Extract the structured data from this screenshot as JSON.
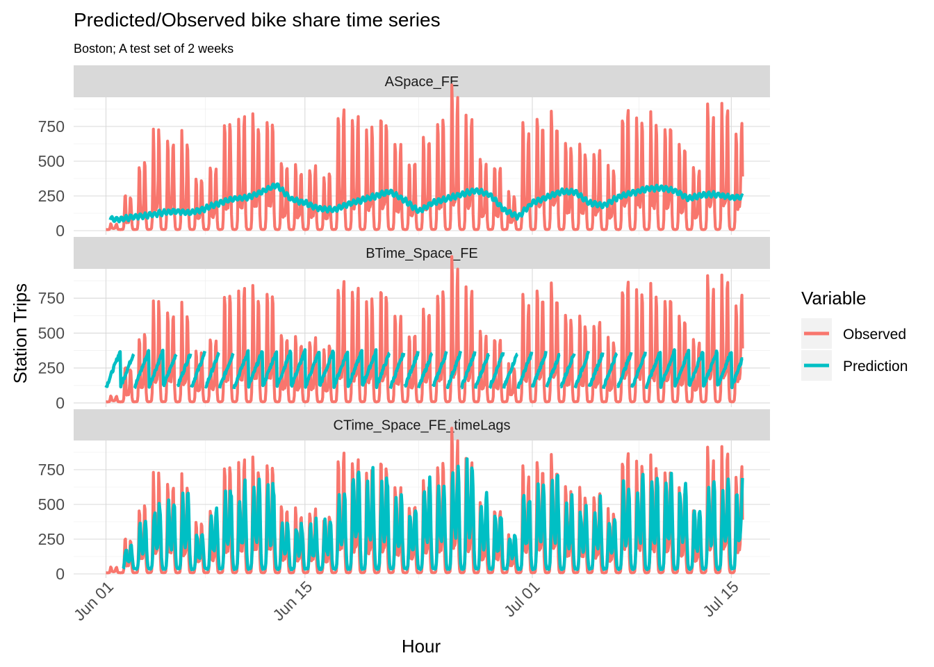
{
  "chart_data": {
    "type": "line",
    "title": "Predicted/Observed bike share time series",
    "subtitle": "Boston; A test set of 2 weeks",
    "xlabel": "Hour",
    "ylabel": "Station Trips",
    "x_ticks": [
      "Jun 01",
      "Jun 15",
      "Jul 01",
      "Jul 15"
    ],
    "x_tick_days": [
      0,
      14,
      30,
      44
    ],
    "x_range_days": [
      0,
      44.8
    ],
    "y_ticks": [
      0,
      250,
      500,
      750
    ],
    "ylim": [
      -30,
      960
    ],
    "grid": true,
    "legend": {
      "title": "Variable",
      "position": "right",
      "entries": [
        {
          "label": "Observed",
          "color": "#F8766D"
        },
        {
          "label": "Prediction",
          "color": "#00BFC4"
        }
      ]
    },
    "observed_daily_peaks": [
      40,
      250,
      480,
      700,
      690,
      660,
      380,
      430,
      780,
      780,
      780,
      790,
      470,
      450,
      460,
      400,
      850,
      780,
      720,
      800,
      600,
      470,
      700,
      780,
      930,
      780,
      480,
      450,
      250,
      720,
      820,
      800,
      610,
      560,
      560,
      420,
      820,
      800,
      760,
      760,
      630,
      420,
      840,
      840,
      730
    ],
    "panels": [
      {
        "strip": "ASpace_FE",
        "prediction_model": "smooth",
        "prediction_daily": [
          90,
          80,
          100,
          110,
          130,
          140,
          130,
          160,
          200,
          230,
          240,
          280,
          330,
          230,
          200,
          160,
          150,
          190,
          220,
          250,
          280,
          220,
          140,
          200,
          230,
          260,
          290,
          260,
          150,
          100,
          200,
          240,
          280,
          280,
          200,
          180,
          240,
          270,
          300,
          310,
          290,
          230,
          260,
          260,
          240
        ]
      },
      {
        "strip": "BTime_Space_FE",
        "prediction_model": "sawtooth",
        "prediction_range": [
          110,
          370
        ]
      },
      {
        "strip": "CTime_Space_FE_timeLags",
        "prediction_model": "lagged",
        "prediction_daily_peaks": [
          60,
          150,
          300,
          440,
          450,
          500,
          250,
          400,
          560,
          540,
          600,
          560,
          320,
          300,
          300,
          330,
          520,
          650,
          600,
          600,
          480,
          400,
          560,
          560,
          700,
          720,
          460,
          380,
          250,
          500,
          560,
          600,
          450,
          420,
          440,
          340,
          570,
          580,
          600,
          620,
          580,
          400,
          560,
          570,
          560
        ]
      }
    ]
  }
}
